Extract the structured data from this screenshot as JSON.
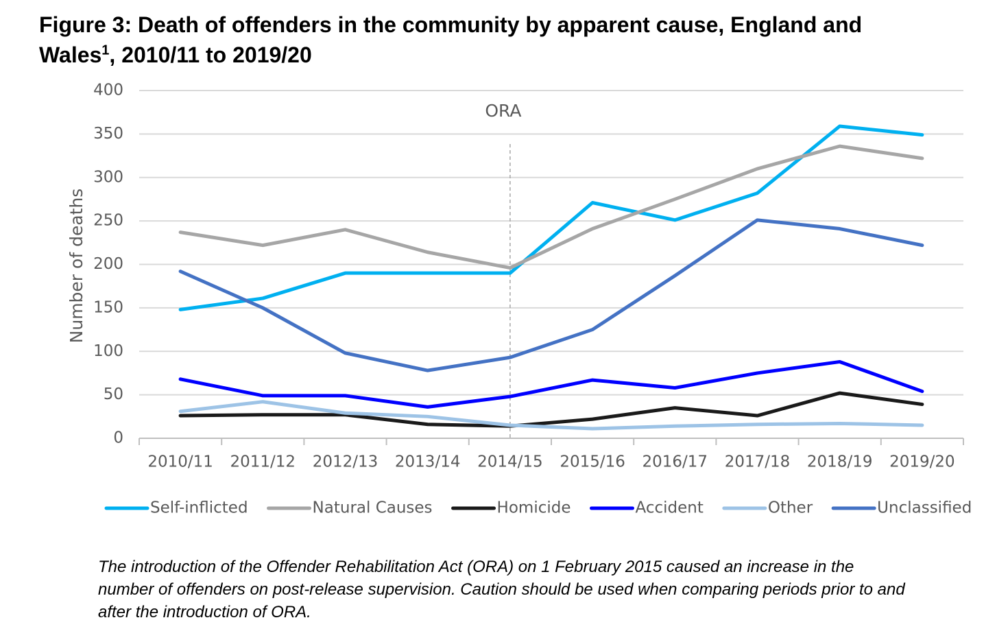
{
  "chart_data": {
    "type": "line",
    "title": "Figure 3: Death of offenders in the community by apparent cause, England and Wales",
    "title_superscript": "1",
    "title_suffix": ", 2010/11 to 2019/20",
    "y_label": "Number of deaths",
    "categories": [
      "2010/11",
      "2011/12",
      "2012/13",
      "2013/14",
      "2014/15",
      "2015/16",
      "2016/17",
      "2017/18",
      "2018/19",
      "2019/20"
    ],
    "series": [
      {
        "name": "Self-inflicted",
        "color": "#00b0f0",
        "values": [
          148,
          161,
          190,
          190,
          190,
          271,
          251,
          282,
          359,
          349
        ]
      },
      {
        "name": "Natural Causes",
        "color": "#a6a6a6",
        "values": [
          237,
          222,
          240,
          214,
          196,
          241,
          275,
          310,
          336,
          322
        ]
      },
      {
        "name": "Homicide",
        "color": "#1a1a1a",
        "values": [
          26,
          27,
          27,
          16,
          14,
          22,
          35,
          26,
          52,
          39
        ]
      },
      {
        "name": "Accident",
        "color": "#0000ff",
        "values": [
          68,
          49,
          49,
          36,
          48,
          67,
          58,
          75,
          88,
          54
        ]
      },
      {
        "name": "Other",
        "color": "#9dc3e6",
        "values": [
          31,
          42,
          29,
          25,
          15,
          11,
          14,
          16,
          17,
          15
        ]
      },
      {
        "name": "Unclassified",
        "color": "#4472c4",
        "values": [
          192,
          150,
          98,
          78,
          93,
          125,
          187,
          251,
          241,
          222
        ]
      }
    ],
    "ylim": [
      0,
      400
    ],
    "yticks": [
      0,
      50,
      100,
      150,
      200,
      250,
      300,
      350,
      400
    ],
    "grid": true,
    "legend": "bottom",
    "annotation": {
      "text": "ORA",
      "category": "2014/15"
    },
    "footnote": "The introduction of the Offender Rehabilitation Act (ORA) on 1 February 2015 caused an increase in the number of offenders on post-release supervision. Caution should be used when comparing periods prior to and after the introduction of ORA."
  }
}
